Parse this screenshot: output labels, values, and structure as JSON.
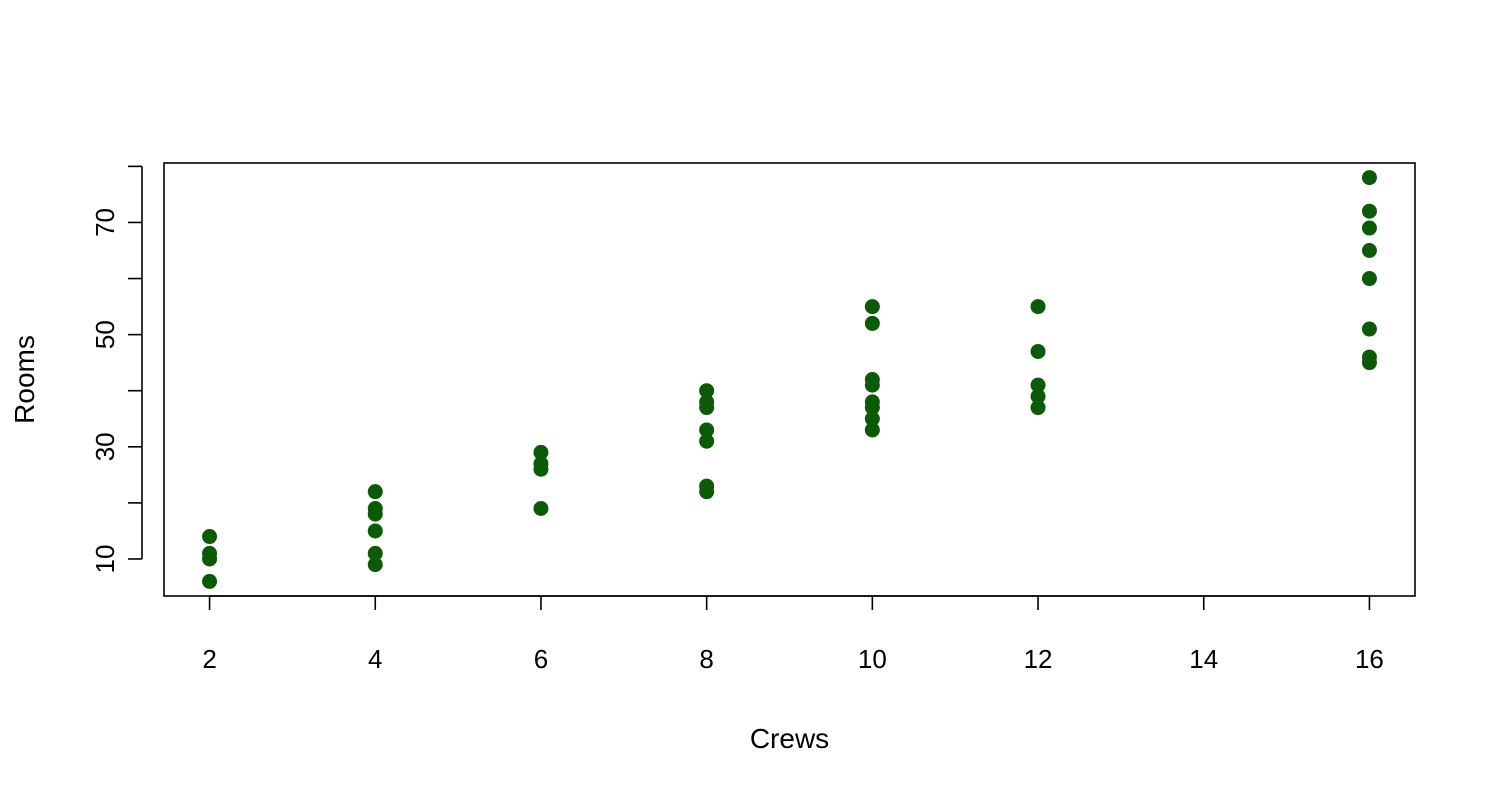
{
  "chart_data": {
    "type": "scatter",
    "title": "",
    "xlabel": "Crews",
    "ylabel": "Rooms",
    "xlim": [
      1.45,
      16.55
    ],
    "ylim": [
      3.4,
      80.6
    ],
    "xticks": [
      2,
      4,
      6,
      8,
      10,
      12,
      14,
      16
    ],
    "yticks": [
      10,
      30,
      50,
      70
    ],
    "yticks_minor": [
      20,
      40,
      60,
      80
    ],
    "grid": false,
    "point_color": "#0b5a06",
    "points": [
      {
        "x": 2,
        "y": 14
      },
      {
        "x": 2,
        "y": 11
      },
      {
        "x": 2,
        "y": 10
      },
      {
        "x": 2,
        "y": 6
      },
      {
        "x": 4,
        "y": 22
      },
      {
        "x": 4,
        "y": 19
      },
      {
        "x": 4,
        "y": 18
      },
      {
        "x": 4,
        "y": 15
      },
      {
        "x": 4,
        "y": 11
      },
      {
        "x": 4,
        "y": 9
      },
      {
        "x": 6,
        "y": 29
      },
      {
        "x": 6,
        "y": 27
      },
      {
        "x": 6,
        "y": 26
      },
      {
        "x": 6,
        "y": 19
      },
      {
        "x": 8,
        "y": 40
      },
      {
        "x": 8,
        "y": 38
      },
      {
        "x": 8,
        "y": 37
      },
      {
        "x": 8,
        "y": 33
      },
      {
        "x": 8,
        "y": 31
      },
      {
        "x": 8,
        "y": 23
      },
      {
        "x": 8,
        "y": 22
      },
      {
        "x": 10,
        "y": 55
      },
      {
        "x": 10,
        "y": 52
      },
      {
        "x": 10,
        "y": 42
      },
      {
        "x": 10,
        "y": 41
      },
      {
        "x": 10,
        "y": 38
      },
      {
        "x": 10,
        "y": 37
      },
      {
        "x": 10,
        "y": 35
      },
      {
        "x": 10,
        "y": 33
      },
      {
        "x": 12,
        "y": 55
      },
      {
        "x": 12,
        "y": 47
      },
      {
        "x": 12,
        "y": 41
      },
      {
        "x": 12,
        "y": 39
      },
      {
        "x": 12,
        "y": 37
      },
      {
        "x": 16,
        "y": 78
      },
      {
        "x": 16,
        "y": 72
      },
      {
        "x": 16,
        "y": 69
      },
      {
        "x": 16,
        "y": 65
      },
      {
        "x": 16,
        "y": 60
      },
      {
        "x": 16,
        "y": 51
      },
      {
        "x": 16,
        "y": 46
      },
      {
        "x": 16,
        "y": 45
      }
    ]
  }
}
